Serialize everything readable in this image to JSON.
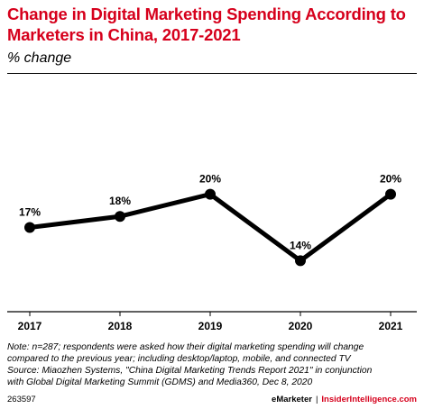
{
  "title": "Change in Digital Marketing Spending According to Marketers in China, 2017-2021",
  "subtitle": "% change",
  "notes": [
    "Note: n=287; respondents were asked how their digital marketing spending will change",
    "compared to the previous year; including desktop/laptop, mobile, and connected TV",
    "Source: Miaozhen Systems, \"China Digital Marketing Trends Report 2021\" in conjunction",
    "with Global Digital Marketing Summit (GDMS) and Media360, Dec 8, 2020"
  ],
  "footer": {
    "id": "263597",
    "brand": "eMarketer",
    "separator": "|",
    "site": "InsiderIntelligence.com"
  },
  "colors": {
    "title": "#d6001c",
    "line": "#000000"
  },
  "chart_data": {
    "type": "line",
    "title": "Change in Digital Marketing Spending According to Marketers in China, 2017-2021",
    "categories": [
      "2017",
      "2018",
      "2019",
      "2020",
      "2021"
    ],
    "values": [
      17,
      18,
      20,
      14,
      20
    ],
    "labels": [
      "17%",
      "18%",
      "20%",
      "14%",
      "20%"
    ],
    "unit": "%",
    "xlabel": "",
    "ylabel": "",
    "ylim": [
      10,
      22
    ],
    "grid": false
  }
}
